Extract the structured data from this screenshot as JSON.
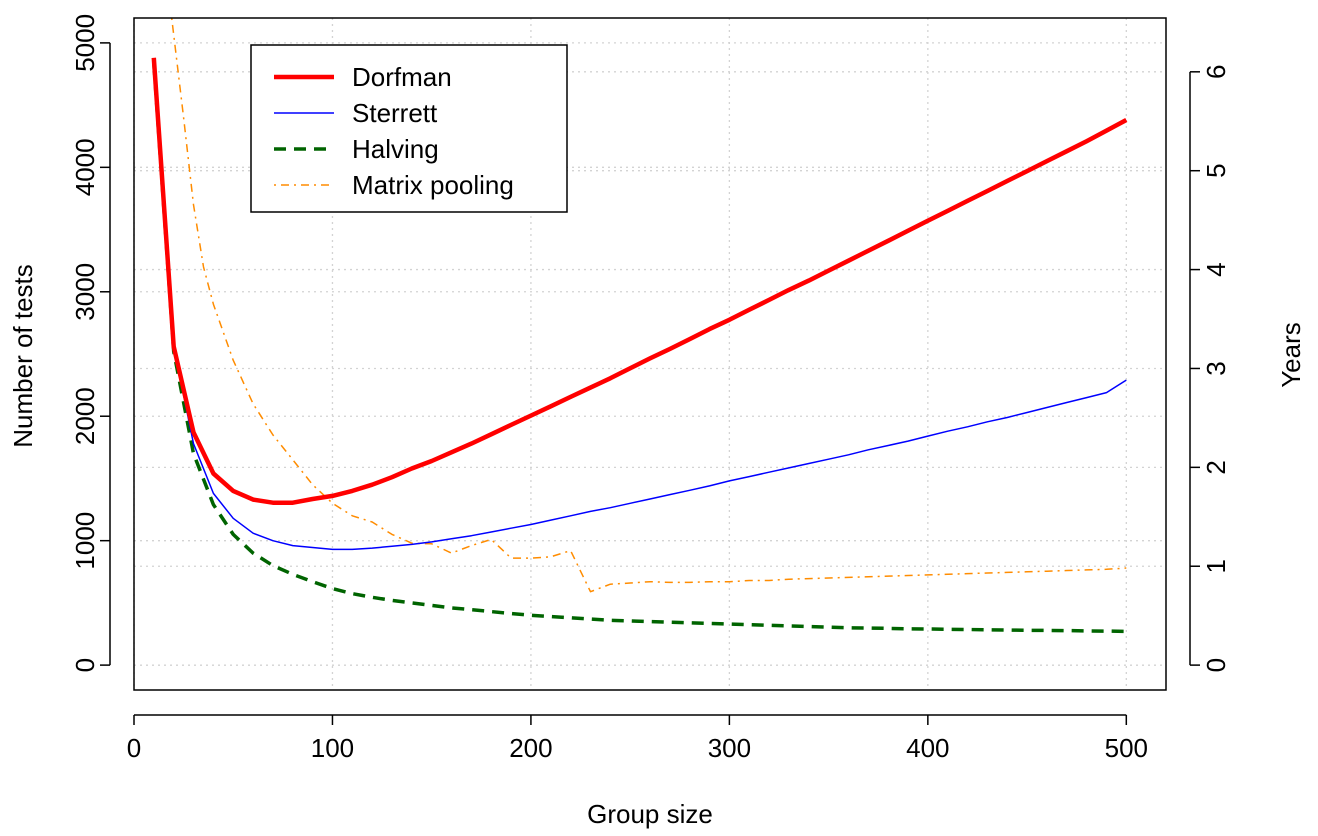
{
  "chart_data": {
    "type": "line",
    "title": "",
    "xlabel": "Group size",
    "ylabel": "Number of tests",
    "ylabel_right": "Years",
    "xlim": [
      0,
      520
    ],
    "ylim": [
      -200,
      5200
    ],
    "y_right_lim": [
      -0.2517,
      6.5443
    ],
    "x_ticks": [
      "0",
      "100",
      "200",
      "300",
      "400",
      "500"
    ],
    "y_ticks": [
      "0",
      "1000",
      "2000",
      "3000",
      "4000",
      "5000"
    ],
    "y_right_ticks": [
      "0",
      "1",
      "2",
      "3",
      "4",
      "5",
      "6"
    ],
    "grid": true,
    "legend_position": "top-left",
    "series": [
      {
        "name": "Dorfman",
        "color": "#ff0000",
        "style": "solid-thick",
        "x": [
          10,
          20,
          30,
          40,
          50,
          60,
          70,
          80,
          90,
          100,
          110,
          120,
          130,
          140,
          150,
          160,
          170,
          180,
          190,
          200,
          210,
          220,
          230,
          240,
          250,
          260,
          270,
          280,
          290,
          300,
          310,
          320,
          330,
          340,
          350,
          360,
          370,
          380,
          390,
          400,
          410,
          420,
          430,
          440,
          450,
          460,
          470,
          480,
          490,
          500
        ],
        "y": [
          4880,
          2560,
          1870,
          1540,
          1400,
          1330,
          1305,
          1305,
          1335,
          1360,
          1400,
          1450,
          1510,
          1580,
          1640,
          1710,
          1780,
          1855,
          1930,
          2005,
          2080,
          2155,
          2230,
          2305,
          2385,
          2465,
          2540,
          2620,
          2700,
          2775,
          2855,
          2935,
          3015,
          3090,
          3170,
          3250,
          3330,
          3410,
          3490,
          3570,
          3650,
          3730,
          3810,
          3890,
          3970,
          4050,
          4130,
          4210,
          4295,
          4380
        ]
      },
      {
        "name": "Sterrett",
        "color": "#0000ff",
        "style": "solid-thin",
        "x": [
          10,
          20,
          30,
          40,
          50,
          60,
          70,
          80,
          90,
          100,
          110,
          120,
          130,
          140,
          150,
          160,
          170,
          180,
          190,
          200,
          210,
          220,
          230,
          240,
          250,
          260,
          270,
          280,
          290,
          300,
          310,
          320,
          330,
          340,
          350,
          360,
          370,
          380,
          390,
          400,
          410,
          420,
          430,
          440,
          450,
          460,
          470,
          480,
          490,
          500
        ],
        "y": [
          4840,
          2560,
          1780,
          1380,
          1180,
          1060,
          1000,
          960,
          945,
          930,
          930,
          940,
          955,
          970,
          990,
          1015,
          1040,
          1070,
          1100,
          1130,
          1165,
          1200,
          1235,
          1265,
          1300,
          1335,
          1370,
          1405,
          1440,
          1480,
          1515,
          1550,
          1585,
          1620,
          1655,
          1690,
          1730,
          1765,
          1800,
          1840,
          1880,
          1915,
          1955,
          1990,
          2030,
          2070,
          2110,
          2150,
          2190,
          2290
        ]
      },
      {
        "name": "Halving",
        "color": "#006400",
        "style": "dashed",
        "x": [
          10,
          20,
          30,
          40,
          50,
          60,
          70,
          80,
          90,
          100,
          110,
          120,
          130,
          140,
          150,
          160,
          170,
          180,
          190,
          200,
          210,
          220,
          230,
          240,
          250,
          260,
          270,
          280,
          290,
          300,
          310,
          320,
          330,
          340,
          350,
          360,
          370,
          380,
          390,
          400,
          410,
          420,
          430,
          440,
          450,
          460,
          470,
          480,
          490,
          500
        ],
        "y": [
          4840,
          2520,
          1700,
          1290,
          1050,
          900,
          800,
          730,
          670,
          615,
          575,
          545,
          520,
          500,
          480,
          460,
          445,
          430,
          415,
          400,
          390,
          380,
          370,
          360,
          355,
          350,
          345,
          340,
          335,
          330,
          325,
          320,
          315,
          310,
          305,
          300,
          298,
          295,
          292,
          290,
          288,
          286,
          284,
          282,
          280,
          279,
          277,
          275,
          273,
          271
        ]
      },
      {
        "name": "Matrix pooling",
        "color": "#ff8c00",
        "style": "dotdash",
        "x": [
          19,
          25,
          30,
          35,
          40,
          50,
          60,
          70,
          80,
          90,
          100,
          110,
          120,
          130,
          140,
          150,
          160,
          170,
          180,
          190,
          200,
          210,
          220,
          230,
          240,
          250,
          260,
          270,
          280,
          290,
          300,
          310,
          320,
          330,
          340,
          350,
          360,
          370,
          380,
          390,
          400,
          410,
          420,
          430,
          440,
          450,
          460,
          470,
          480,
          490,
          500
        ],
        "y": [
          5200,
          4400,
          3700,
          3200,
          2900,
          2450,
          2100,
          1850,
          1650,
          1450,
          1300,
          1200,
          1150,
          1050,
          980,
          975,
          900,
          960,
          1010,
          860,
          860,
          870,
          920,
          590,
          650,
          660,
          670,
          665,
          665,
          670,
          670,
          680,
          680,
          690,
          695,
          700,
          705,
          710,
          715,
          720,
          725,
          730,
          735,
          740,
          745,
          750,
          755,
          760,
          765,
          770,
          780
        ]
      }
    ]
  }
}
